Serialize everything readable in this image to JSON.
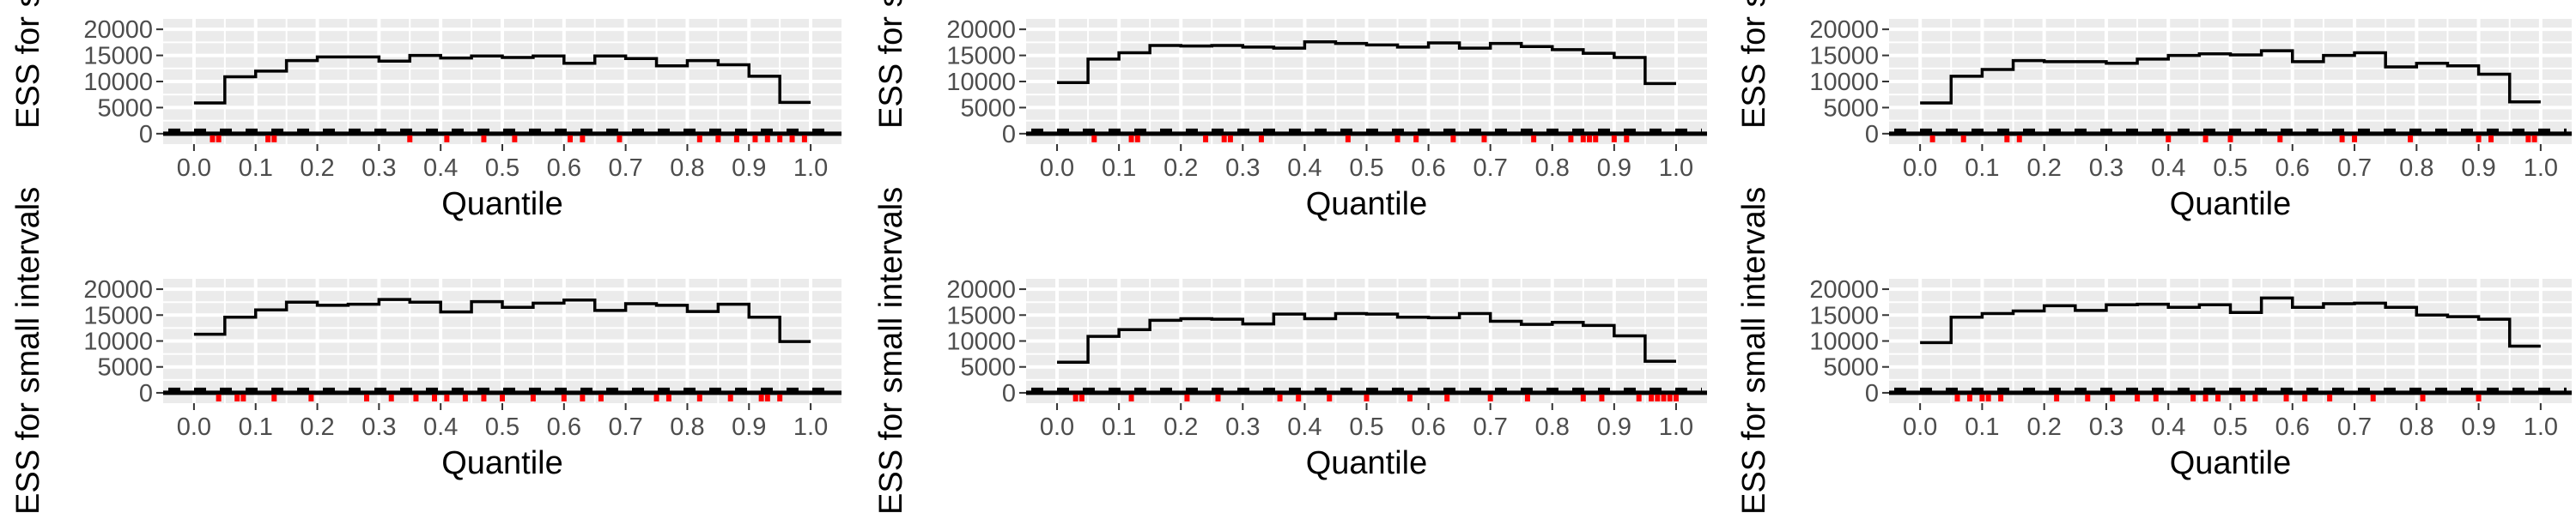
{
  "chart_data": [
    {
      "type": "step",
      "xlabel": "Quantile",
      "ylabel": "ESS for small intervals",
      "xlim": [
        -0.05,
        1.05
      ],
      "ylim": [
        -2000,
        22000
      ],
      "x_ticks": [
        "0.0",
        "0.1",
        "0.2",
        "0.3",
        "0.4",
        "0.5",
        "0.6",
        "0.7",
        "0.8",
        "0.9",
        "1.0"
      ],
      "y_ticks": [
        "0",
        "5000",
        "10000",
        "15000",
        "20000"
      ],
      "grid": true,
      "bin_edges": [
        0.0,
        0.05,
        0.1,
        0.15,
        0.2,
        0.25,
        0.3,
        0.35,
        0.4,
        0.45,
        0.5,
        0.55,
        0.6,
        0.65,
        0.7,
        0.75,
        0.8,
        0.85,
        0.9,
        0.95,
        1.0
      ],
      "values": [
        5900,
        10900,
        12000,
        14000,
        14700,
        14700,
        13900,
        15000,
        14500,
        14900,
        14600,
        14900,
        13500,
        14900,
        14400,
        13000,
        14000,
        13200,
        11000,
        6000
      ],
      "red_marks_x": [
        0.03,
        0.04,
        0.12,
        0.13,
        0.35,
        0.41,
        0.47,
        0.52,
        0.61,
        0.63,
        0.69,
        0.82,
        0.85,
        0.88,
        0.91,
        0.93,
        0.95,
        0.97,
        0.99
      ]
    },
    {
      "type": "step",
      "xlabel": "Quantile",
      "ylabel": "ESS for small intervals",
      "xlim": [
        -0.05,
        1.05
      ],
      "ylim": [
        -2000,
        22000
      ],
      "x_ticks": [
        "0.0",
        "0.1",
        "0.2",
        "0.3",
        "0.4",
        "0.5",
        "0.6",
        "0.7",
        "0.8",
        "0.9",
        "1.0"
      ],
      "y_ticks": [
        "0",
        "5000",
        "10000",
        "15000",
        "20000"
      ],
      "grid": true,
      "bin_edges": [
        0.0,
        0.05,
        0.1,
        0.15,
        0.2,
        0.25,
        0.3,
        0.35,
        0.4,
        0.45,
        0.5,
        0.55,
        0.6,
        0.65,
        0.7,
        0.75,
        0.8,
        0.85,
        0.9,
        0.95,
        1.0
      ],
      "values": [
        9800,
        14300,
        15500,
        16900,
        16800,
        16900,
        16600,
        16400,
        17600,
        17300,
        17000,
        16600,
        17400,
        16400,
        17300,
        16700,
        16100,
        15400,
        14600,
        9600
      ],
      "red_marks_x": [
        0.06,
        0.12,
        0.13,
        0.24,
        0.27,
        0.28,
        0.33,
        0.47,
        0.55,
        0.58,
        0.64,
        0.69,
        0.77,
        0.83,
        0.85,
        0.86,
        0.87,
        0.9,
        0.92
      ]
    },
    {
      "type": "step",
      "xlabel": "Quantile",
      "ylabel": "ESS for small intervals",
      "xlim": [
        -0.05,
        1.05
      ],
      "ylim": [
        -2000,
        22000
      ],
      "x_ticks": [
        "0.0",
        "0.1",
        "0.2",
        "0.3",
        "0.4",
        "0.5",
        "0.6",
        "0.7",
        "0.8",
        "0.9",
        "1.0"
      ],
      "y_ticks": [
        "0",
        "5000",
        "10000",
        "15000",
        "20000"
      ],
      "grid": true,
      "bin_edges": [
        0.0,
        0.05,
        0.1,
        0.15,
        0.2,
        0.25,
        0.3,
        0.35,
        0.4,
        0.45,
        0.5,
        0.55,
        0.6,
        0.65,
        0.7,
        0.75,
        0.8,
        0.85,
        0.9,
        0.95,
        1.0
      ],
      "values": [
        5900,
        11000,
        12300,
        14000,
        13800,
        13800,
        13500,
        14300,
        15000,
        15300,
        15100,
        15900,
        13800,
        15000,
        15500,
        12800,
        13500,
        13000,
        11400,
        6100
      ],
      "red_marks_x": [
        0.02,
        0.07,
        0.14,
        0.16,
        0.4,
        0.46,
        0.5,
        0.58,
        0.68,
        0.7,
        0.79,
        0.9,
        0.92,
        0.98,
        0.99
      ]
    },
    {
      "type": "step",
      "xlabel": "Quantile",
      "ylabel": "ESS for small intervals",
      "xlim": [
        -0.05,
        1.05
      ],
      "ylim": [
        -2000,
        22000
      ],
      "x_ticks": [
        "0.0",
        "0.1",
        "0.2",
        "0.3",
        "0.4",
        "0.5",
        "0.6",
        "0.7",
        "0.8",
        "0.9",
        "1.0"
      ],
      "y_ticks": [
        "0",
        "5000",
        "10000",
        "15000",
        "20000"
      ],
      "grid": true,
      "bin_edges": [
        0.0,
        0.05,
        0.1,
        0.15,
        0.2,
        0.25,
        0.3,
        0.35,
        0.4,
        0.45,
        0.5,
        0.55,
        0.6,
        0.65,
        0.7,
        0.75,
        0.8,
        0.85,
        0.9,
        0.95,
        1.0
      ],
      "values": [
        11300,
        14600,
        16000,
        17500,
        16900,
        17100,
        18000,
        17500,
        15600,
        17600,
        16500,
        17300,
        17900,
        15900,
        17200,
        16900,
        15700,
        17100,
        14600,
        9900
      ],
      "red_marks_x": [
        0.04,
        0.07,
        0.08,
        0.13,
        0.19,
        0.28,
        0.32,
        0.36,
        0.39,
        0.41,
        0.44,
        0.47,
        0.5,
        0.55,
        0.6,
        0.63,
        0.66,
        0.75,
        0.77,
        0.82,
        0.87,
        0.92,
        0.93,
        0.95
      ]
    },
    {
      "type": "step",
      "xlabel": "Quantile",
      "ylabel": "ESS for small intervals",
      "xlim": [
        -0.05,
        1.05
      ],
      "ylim": [
        -2000,
        22000
      ],
      "x_ticks": [
        "0.0",
        "0.1",
        "0.2",
        "0.3",
        "0.4",
        "0.5",
        "0.6",
        "0.7",
        "0.8",
        "0.9",
        "1.0"
      ],
      "y_ticks": [
        "0",
        "5000",
        "10000",
        "15000",
        "20000"
      ],
      "grid": true,
      "bin_edges": [
        0.0,
        0.05,
        0.1,
        0.15,
        0.2,
        0.25,
        0.3,
        0.35,
        0.4,
        0.45,
        0.5,
        0.55,
        0.6,
        0.65,
        0.7,
        0.75,
        0.8,
        0.85,
        0.9,
        0.95,
        1.0
      ],
      "values": [
        5900,
        10900,
        12200,
        14000,
        14300,
        14200,
        13300,
        15200,
        14300,
        15300,
        15200,
        14600,
        14500,
        15300,
        13800,
        13200,
        13600,
        13000,
        11000,
        6100
      ],
      "red_marks_x": [
        0.03,
        0.04,
        0.12,
        0.21,
        0.26,
        0.36,
        0.39,
        0.44,
        0.5,
        0.57,
        0.63,
        0.7,
        0.76,
        0.85,
        0.88,
        0.94,
        0.96,
        0.97,
        0.98,
        0.99,
        1.0
      ]
    },
    {
      "type": "step",
      "xlabel": "Quantile",
      "ylabel": "ESS for small intervals",
      "xlim": [
        -0.05,
        1.05
      ],
      "ylim": [
        -2000,
        22000
      ],
      "x_ticks": [
        "0.0",
        "0.1",
        "0.2",
        "0.3",
        "0.4",
        "0.5",
        "0.6",
        "0.7",
        "0.8",
        "0.9",
        "1.0"
      ],
      "y_ticks": [
        "0",
        "5000",
        "10000",
        "15000",
        "20000"
      ],
      "grid": true,
      "bin_edges": [
        0.0,
        0.05,
        0.1,
        0.15,
        0.2,
        0.25,
        0.3,
        0.35,
        0.4,
        0.45,
        0.5,
        0.55,
        0.6,
        0.65,
        0.7,
        0.75,
        0.8,
        0.85,
        0.9,
        0.95,
        1.0
      ],
      "values": [
        9700,
        14600,
        15300,
        15800,
        16800,
        15900,
        17000,
        17100,
        16500,
        17000,
        15500,
        18300,
        16500,
        17200,
        17300,
        16500,
        15000,
        14700,
        14200,
        9000
      ],
      "red_marks_x": [
        0.06,
        0.08,
        0.1,
        0.11,
        0.13,
        0.22,
        0.27,
        0.31,
        0.35,
        0.38,
        0.44,
        0.46,
        0.48,
        0.52,
        0.54,
        0.59,
        0.62,
        0.66,
        0.73,
        0.81,
        0.9
      ]
    }
  ]
}
